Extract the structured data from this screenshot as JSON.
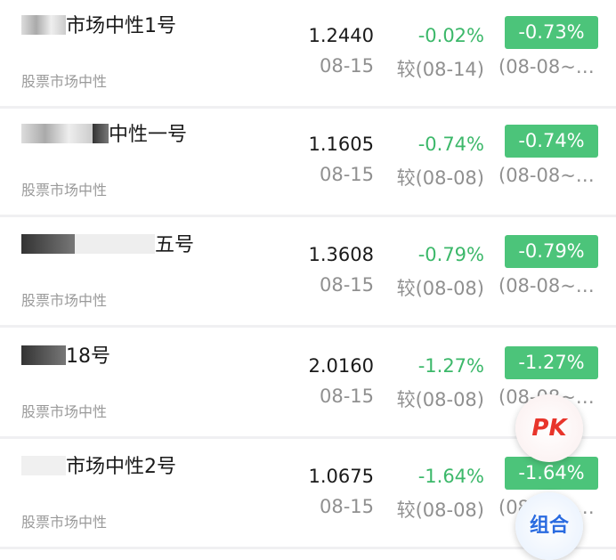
{
  "funds": [
    {
      "name": "市场中性1号",
      "category": "股票市场中性",
      "nav": "1.2440",
      "date": "08-15",
      "change": "-0.02%",
      "compare": "较(08-14)",
      "period_change": "-0.73%",
      "period": "(08-08~…"
    },
    {
      "name": "中性一号",
      "category": "股票市场中性",
      "nav": "1.1605",
      "date": "08-15",
      "change": "-0.74%",
      "compare": "较(08-08)",
      "period_change": "-0.74%",
      "period": "(08-08~…"
    },
    {
      "name": "五号",
      "category": "股票市场中性",
      "nav": "1.3608",
      "date": "08-15",
      "change": "-0.79%",
      "compare": "较(08-08)",
      "period_change": "-0.79%",
      "period": "(08-08~…"
    },
    {
      "name": "18号",
      "category": "股票市场中性",
      "nav": "2.0160",
      "date": "08-15",
      "change": "-1.27%",
      "compare": "较(08-08)",
      "period_change": "-1.27%",
      "period": "(08-08~…"
    },
    {
      "name": "市场中性2号",
      "category": "股票市场中性",
      "nav": "1.0675",
      "date": "08-15",
      "change": "-1.64%",
      "compare": "较(08-08)",
      "period_change": "-1.64%",
      "period": "(08-08~…"
    }
  ],
  "fab": {
    "pk": "PK",
    "combo": "组合"
  },
  "colors": {
    "down": "#3cb86a",
    "badge": "#4cc47a"
  }
}
